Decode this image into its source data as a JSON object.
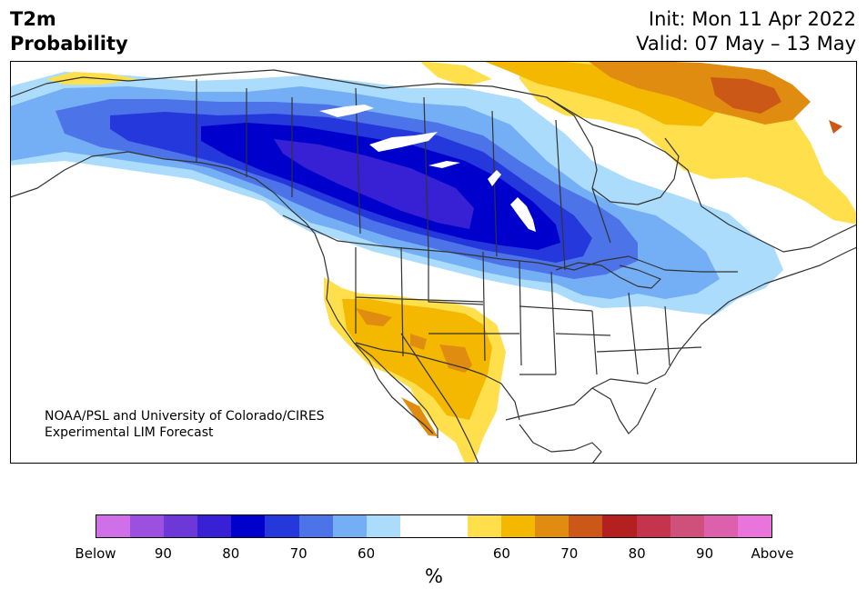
{
  "title": {
    "line1": "T2m",
    "line2": "Probability"
  },
  "dates": {
    "init": "Init: Mon 11 Apr 2022",
    "valid": "Valid: 07 May – 13 May"
  },
  "credit": {
    "line1": "NOAA/PSL and University of Colorado/CIRES",
    "line2": "Experimental LIM Forecast"
  },
  "colorbar": {
    "colors": [
      "#d070e8",
      "#9c50e0",
      "#6c38d8",
      "#3820d4",
      "#0000cc",
      "#2438dc",
      "#4c74e8",
      "#74aef4",
      "#acdcfc",
      "#ffffff",
      "#ffffff",
      "#ffe04c",
      "#f4b800",
      "#e08c10",
      "#cc5818",
      "#b42020",
      "#c4344c",
      "#d0507c",
      "#dc60ac",
      "#e874dc"
    ],
    "ticks": [
      "Below",
      "90",
      "80",
      "70",
      "60",
      "60",
      "70",
      "80",
      "90",
      "Above"
    ],
    "unit": "%"
  },
  "map_colors": {
    "blue_60": "#acdcfc",
    "blue_65": "#74aef4",
    "blue_70": "#4c74e8",
    "blue_75": "#2438dc",
    "blue_80": "#0000cc",
    "blue_85": "#3820d4",
    "orange_60": "#ffe04c",
    "orange_65": "#f4b800",
    "orange_70": "#e08c10",
    "orange_75": "#cc5818"
  }
}
